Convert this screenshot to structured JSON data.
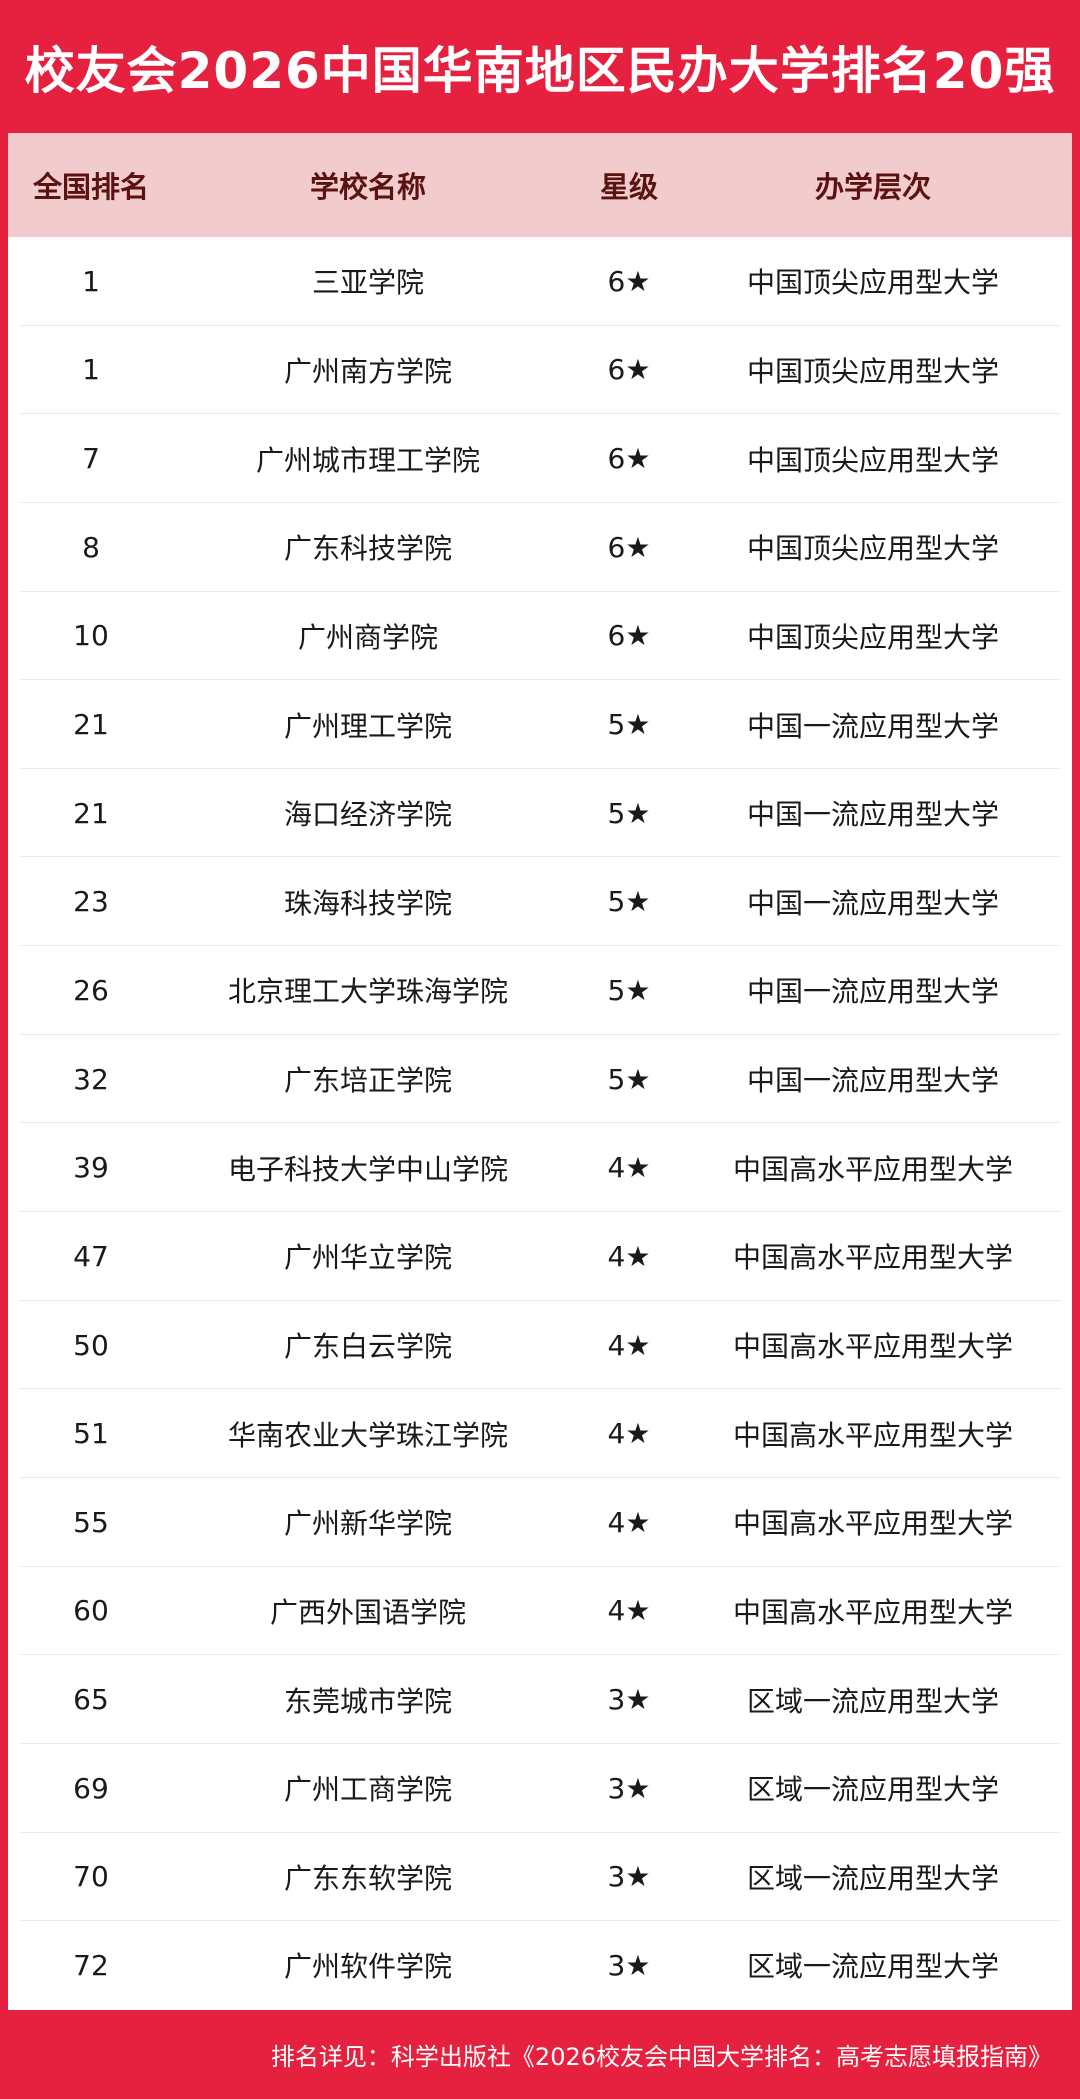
{
  "title": "校友会2026中国华南地区民办大学排名20强",
  "header": {
    "rank": "全国排名",
    "name": "学校名称",
    "stars": "星级",
    "level": "办学层次"
  },
  "rows": [
    {
      "rank": "1",
      "name": "三亚学院",
      "stars": "6★",
      "level": "中国顶尖应用型大学"
    },
    {
      "rank": "1",
      "name": "广州南方学院",
      "stars": "6★",
      "level": "中国顶尖应用型大学"
    },
    {
      "rank": "7",
      "name": "广州城市理工学院",
      "stars": "6★",
      "level": "中国顶尖应用型大学"
    },
    {
      "rank": "8",
      "name": "广东科技学院",
      "stars": "6★",
      "level": "中国顶尖应用型大学"
    },
    {
      "rank": "10",
      "name": "广州商学院",
      "stars": "6★",
      "level": "中国顶尖应用型大学"
    },
    {
      "rank": "21",
      "name": "广州理工学院",
      "stars": "5★",
      "level": "中国一流应用型大学"
    },
    {
      "rank": "21",
      "name": "海口经济学院",
      "stars": "5★",
      "level": "中国一流应用型大学"
    },
    {
      "rank": "23",
      "name": "珠海科技学院",
      "stars": "5★",
      "level": "中国一流应用型大学"
    },
    {
      "rank": "26",
      "name": "北京理工大学珠海学院",
      "stars": "5★",
      "level": "中国一流应用型大学"
    },
    {
      "rank": "32",
      "name": "广东培正学院",
      "stars": "5★",
      "level": "中国一流应用型大学"
    },
    {
      "rank": "39",
      "name": "电子科技大学中山学院",
      "stars": "4★",
      "level": "中国高水平应用型大学"
    },
    {
      "rank": "47",
      "name": "广州华立学院",
      "stars": "4★",
      "level": "中国高水平应用型大学"
    },
    {
      "rank": "50",
      "name": "广东白云学院",
      "stars": "4★",
      "level": "中国高水平应用型大学"
    },
    {
      "rank": "51",
      "name": "华南农业大学珠江学院",
      "stars": "4★",
      "level": "中国高水平应用型大学"
    },
    {
      "rank": "55",
      "name": "广州新华学院",
      "stars": "4★",
      "level": "中国高水平应用型大学"
    },
    {
      "rank": "60",
      "name": "广西外国语学院",
      "stars": "4★",
      "level": "中国高水平应用型大学"
    },
    {
      "rank": "65",
      "name": "东莞城市学院",
      "stars": "3★",
      "level": "区域一流应用型大学"
    },
    {
      "rank": "69",
      "name": "广州工商学院",
      "stars": "3★",
      "level": "区域一流应用型大学"
    },
    {
      "rank": "70",
      "name": "广东东软学院",
      "stars": "3★",
      "level": "区域一流应用型大学"
    },
    {
      "rank": "72",
      "name": "广州软件学院",
      "stars": "3★",
      "level": "区域一流应用型大学"
    }
  ],
  "footer": "排名详见：科学出版社《2026校友会中国大学排名：高考志愿填报指南》",
  "colors": {
    "brand_red": "#e5213f",
    "header_bg": "#f2cccc",
    "header_text": "#5a1212"
  }
}
